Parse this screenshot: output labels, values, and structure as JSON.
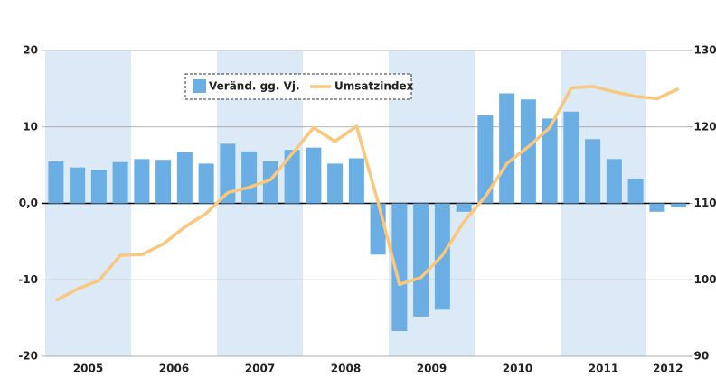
{
  "chart_data": {
    "type": "bar_line",
    "categories": [
      null,
      null,
      null,
      null,
      null,
      null,
      null,
      null,
      null,
      null,
      null,
      null,
      null,
      null,
      null,
      null,
      null,
      null,
      null,
      null,
      null,
      null,
      null,
      null,
      null,
      null,
      null,
      null,
      null,
      null
    ],
    "x_groups": [
      {
        "label": "2005",
        "span": 4
      },
      {
        "label": "2006",
        "span": 4
      },
      {
        "label": "2007",
        "span": 4
      },
      {
        "label": "2008",
        "span": 4
      },
      {
        "label": "2009",
        "span": 4
      },
      {
        "label": "2010",
        "span": 4
      },
      {
        "label": "2011",
        "span": 4
      },
      {
        "label": "2012",
        "span": 2
      }
    ],
    "series": [
      {
        "name": "Veränd. gg. Vj.",
        "type": "bar",
        "color": "#6aaee3",
        "values": [
          5.5,
          4.7,
          4.4,
          5.4,
          5.8,
          5.7,
          6.7,
          5.2,
          7.8,
          6.8,
          5.5,
          7.0,
          7.3,
          5.2,
          5.9,
          -6.7,
          -16.7,
          -14.8,
          -13.9,
          -1.1,
          11.5,
          14.4,
          13.6,
          11.1,
          12.0,
          8.4,
          5.8,
          3.2,
          -1.1,
          -0.5
        ]
      },
      {
        "name": "Umsatzindex",
        "type": "line",
        "axis": "y2",
        "color": "#fac77c",
        "values": [
          97.3,
          98.8,
          99.9,
          103.2,
          103.3,
          104.7,
          106.9,
          108.7,
          111.4,
          112.1,
          113.1,
          116.5,
          119.9,
          118.1,
          120.1,
          110.2,
          99.4,
          100.3,
          103.2,
          107.6,
          110.9,
          115.2,
          117.4,
          119.9,
          125.1,
          125.3,
          124.6,
          124.0,
          123.7,
          125.0
        ]
      }
    ],
    "ylim": [
      -20,
      20
    ],
    "yticks": [
      -20,
      -10,
      {
        "value": 0,
        "label": "0,0"
      },
      10,
      20
    ],
    "y2lim": [
      90,
      130
    ],
    "y2ticks": [
      90,
      100,
      110,
      120,
      130
    ],
    "grid": true,
    "band_color": "#dce9f7",
    "legend": "top-left"
  }
}
